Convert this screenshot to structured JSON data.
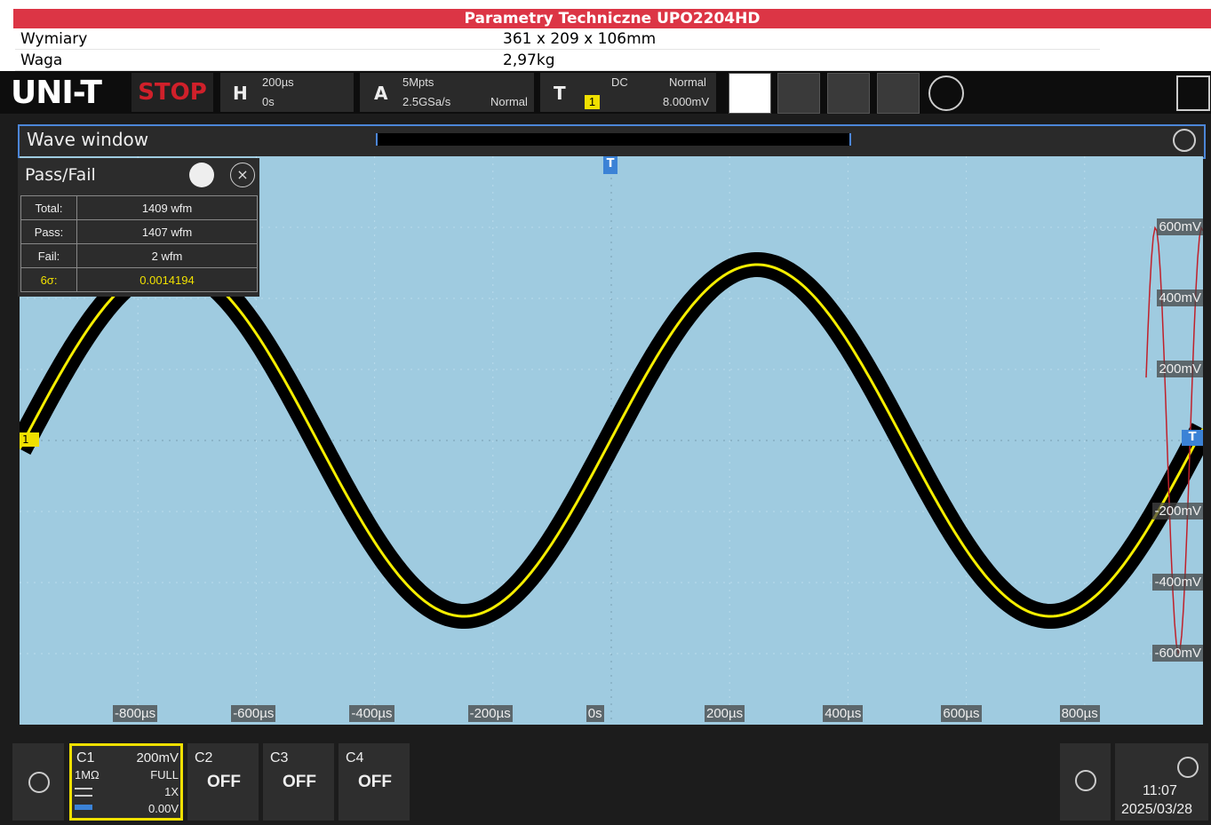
{
  "header": {
    "title": "Parametry Techniczne UPO2204HD",
    "rows": [
      [
        "Wymiary",
        "361 x 209 x 106mm"
      ],
      [
        "Waga",
        "2,97kg"
      ]
    ]
  },
  "toolbar": {
    "brand": "UNI-T",
    "status": "STOP",
    "horizontal": {
      "label": "H",
      "scale": "200µs",
      "position": "0s"
    },
    "acquire": {
      "label": "A",
      "depth": "5Mpts",
      "rate": "2.5GSa/s",
      "mode": "Normal"
    },
    "trigger": {
      "label": "T",
      "source": "1",
      "coupling": "DC",
      "mode": "Normal",
      "level": "8.000mV"
    }
  },
  "wave_window": {
    "title": "Wave window",
    "trigger_marker": "T",
    "channel_marker": "1",
    "x_labels": [
      "-800µs",
      "-600µs",
      "-400µs",
      "-200µs",
      "0s",
      "200µs",
      "400µs",
      "600µs",
      "800µs"
    ],
    "y_labels": [
      "600mV",
      "400mV",
      "200mV",
      "-200mV",
      "-400mV",
      "-600mV"
    ]
  },
  "pass_fail": {
    "title": "Pass/Fail",
    "rows": [
      [
        "Total:",
        "1409 wfm"
      ],
      [
        "Pass:",
        "1407 wfm"
      ],
      [
        "Fail:",
        "2 wfm"
      ],
      [
        "6σ:",
        "0.0014194"
      ]
    ]
  },
  "channels": [
    {
      "name": "C1",
      "scale": "200mV",
      "impedance": "1MΩ",
      "bandwidth": "FULL",
      "probe": "1X",
      "offset": "0.00V"
    },
    {
      "name": "C2",
      "state": "OFF"
    },
    {
      "name": "C3",
      "state": "OFF"
    },
    {
      "name": "C4",
      "state": "OFF"
    }
  ],
  "clock": {
    "time": "11:07",
    "date": "2025/03/28"
  }
}
